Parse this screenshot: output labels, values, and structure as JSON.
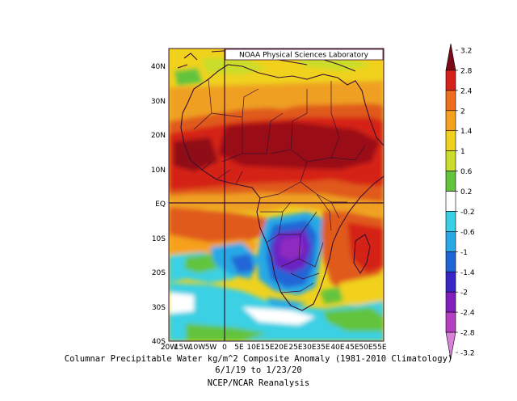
{
  "map": {
    "credit": "NOAA Physical Sciences Laboratory",
    "lat_labels": [
      "40N",
      "30N",
      "20N",
      "10N",
      "EQ",
      "10S",
      "20S",
      "30S",
      "40S"
    ],
    "lon_labels": [
      "20W",
      "15W",
      "10W",
      "5W",
      "0",
      "5E",
      "10E",
      "15E",
      "20E",
      "25E",
      "30E",
      "35E",
      "40E",
      "45E",
      "50E",
      "55E"
    ]
  },
  "colorbar": {
    "labels": [
      "3.2",
      "2.8",
      "2.4",
      "2",
      "1.4",
      "1",
      "0.6",
      "0.2",
      "-0.2",
      "-0.6",
      "-1",
      "-1.4",
      "-2",
      "-2.4",
      "-2.8",
      "-3.2"
    ],
    "colors": [
      "#7a0a16",
      "#d52119",
      "#ef6d1e",
      "#f6a01f",
      "#f1d11f",
      "#c9dd2a",
      "#62c43c",
      "#ffffff",
      "#3ad0e4",
      "#28a9e6",
      "#2065d6",
      "#3a25c8",
      "#7f1fbd",
      "#b43fbf",
      "#d782d8"
    ]
  },
  "caption": {
    "line1": "Columnar Precipitable Water kg/m^2 Composite Anomaly (1981-2010 Climatology)",
    "line2": "6/1/19 to 1/23/20",
    "line3": "NCEP/NCAR Reanalysis"
  }
}
